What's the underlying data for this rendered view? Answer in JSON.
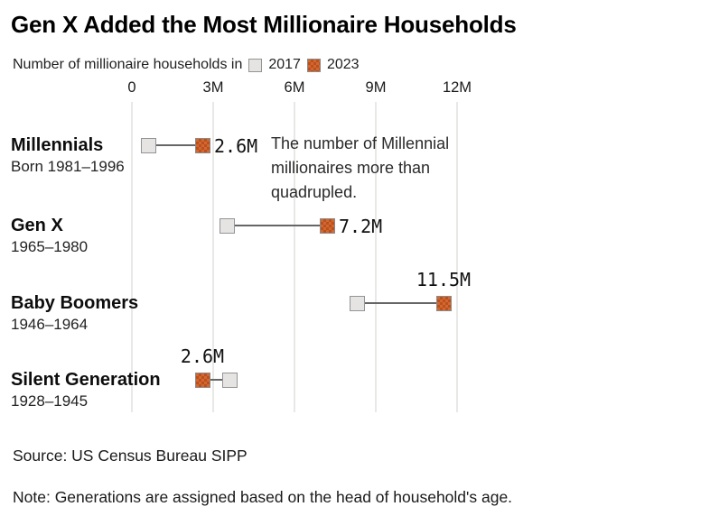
{
  "title": "Gen X Added the Most Millionaire Households",
  "legend": {
    "prefix": "Number of millionaire households in",
    "year1": "2017",
    "year2": "2023"
  },
  "annotation": "The number of Millennial millionaires more than quadrupled.",
  "source": "Source: US Census Bureau SIPP",
  "note": "Note: Generations are assigned based on the head of household's age.",
  "colors": {
    "orange_2023": "#d4672f",
    "orange_checker_dark": "#b9511f",
    "gray_2017_fill": "#e5e4e2",
    "marker_border": "#8a8a8a",
    "connector": "#666666",
    "gridline": "#e8e8e6"
  },
  "chart_data": {
    "type": "dumbbell",
    "title": "Gen X Added the Most Millionaire Households",
    "subtitle": "Number of millionaire households in 2017 vs 2023",
    "categories": [
      "Millennials",
      "Gen X",
      "Baby Boomers",
      "Silent Generation"
    ],
    "sublabels": [
      "Born 1981–1996",
      "1965–1980",
      "1946–1964",
      "1928–1945"
    ],
    "series": [
      {
        "name": "2017",
        "values": [
          0.6,
          3.5,
          8.3,
          3.6
        ]
      },
      {
        "name": "2023",
        "values": [
          2.6,
          7.2,
          11.5,
          2.6
        ]
      }
    ],
    "value_labels": [
      "2.6M",
      "7.2M",
      "11.5M",
      "2.6M"
    ],
    "value_label_placement": [
      "right",
      "right",
      "above",
      "above"
    ],
    "xlim": [
      0,
      12
    ],
    "x_ticks": [
      0,
      3,
      6,
      9,
      12
    ],
    "x_tick_labels": [
      "0",
      "3M",
      "6M",
      "9M",
      "12M"
    ],
    "grid": "vertical",
    "legend_position": "top",
    "annotation": "The number of Millennial millionaires more than quadrupled.",
    "note_2017_values_estimated": true
  }
}
